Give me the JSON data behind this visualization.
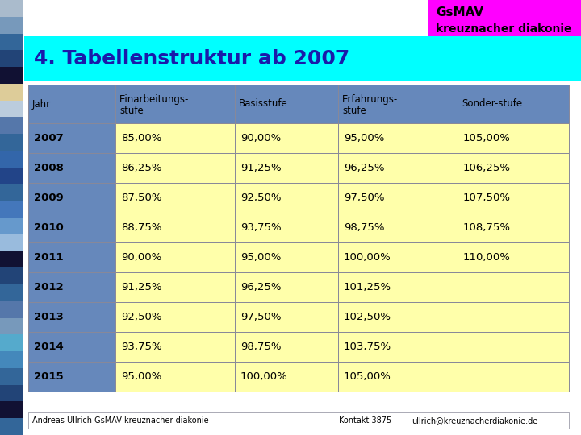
{
  "title": "4. Tabellenstruktur ab 2007",
  "title_color": "#1a1aaa",
  "title_bg": "#00FFFF",
  "logo_line1": "GsMAV",
  "logo_line2": "kreuznacher diakonie",
  "logo_bg": "#FF00FF",
  "logo_text_color": "#000000",
  "header_row": [
    "Jahr",
    "Einarbeitungs-\nstufe",
    "Basisstufe",
    "Erfahrungs-\nstufe",
    "Sonder-stufe"
  ],
  "header_bg": "#6688BB",
  "header_text_color": "#000000",
  "rows": [
    [
      "2007",
      "85,00%",
      "90,00%",
      "95,00%",
      "105,00%"
    ],
    [
      "2008",
      "86,25%",
      "91,25%",
      "96,25%",
      "106,25%"
    ],
    [
      "2009",
      "87,50%",
      "92,50%",
      "97,50%",
      "107,50%"
    ],
    [
      "2010",
      "88,75%",
      "93,75%",
      "98,75%",
      "108,75%"
    ],
    [
      "2011",
      "90,00%",
      "95,00%",
      "100,00%",
      "110,00%"
    ],
    [
      "2012",
      "91,25%",
      "96,25%",
      "101,25%",
      ""
    ],
    [
      "2013",
      "92,50%",
      "97,50%",
      "102,50%",
      ""
    ],
    [
      "2014",
      "93,75%",
      "98,75%",
      "103,75%",
      ""
    ],
    [
      "2015",
      "95,00%",
      "100,00%",
      "105,00%",
      ""
    ]
  ],
  "row_year_bg": "#6688BB",
  "row_data_bg": "#FFFFAA",
  "row_text_color": "#000000",
  "row_year_text_color": "#000000",
  "table_border_color": "#888899",
  "footer_text": "Andreas Ullrich GsMAV kreuznacher diakonie",
  "footer_center": "Kontakt 3875",
  "footer_right": "ullrich@kreuznacherdiakonie.de",
  "footer_bg": "#FFFFFF",
  "footer_text_color": "#000000",
  "strip_colors": [
    "#AABBCC",
    "#7799BB",
    "#336699",
    "#224477",
    "#111133",
    "#EEE8AA",
    "#AABBCC",
    "#5577AA",
    "#336699",
    "#3366AA",
    "#224488",
    "#336699",
    "#4477BB",
    "#6699CC",
    "#99BBDD",
    "#111133",
    "#224477",
    "#336699",
    "#5577AA",
    "#7799BB",
    "#6699CC",
    "#5588BB",
    "#336699",
    "#224477",
    "#111133",
    "#336699"
  ],
  "bg_color": "#FFFFFF"
}
